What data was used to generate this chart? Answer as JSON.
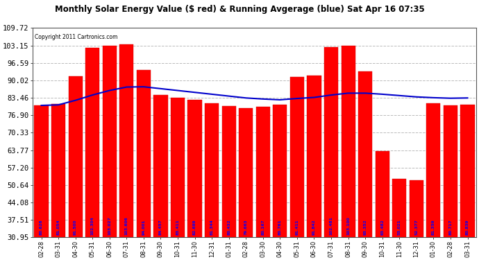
{
  "title": "Monthly Solar Energy Value ($ red) & Running Avgerage (blue) Sat Apr 16 07:35",
  "copyright": "Copyright 2011 Cartronics.com",
  "bar_color": "#ff0000",
  "line_color": "#0000cc",
  "background_color": "#ffffff",
  "grid_color": "#bbbbbb",
  "ylim_min": 30.95,
  "ylim_max": 109.72,
  "yticks": [
    30.95,
    37.51,
    44.08,
    50.64,
    57.2,
    63.77,
    70.33,
    76.9,
    83.46,
    90.02,
    96.59,
    103.15,
    109.72
  ],
  "categories": [
    "02-28",
    "03-31",
    "04-30",
    "05-31",
    "06-30",
    "07-31",
    "08-31",
    "09-30",
    "10-31",
    "11-30",
    "12-31",
    "01-31",
    "02-28",
    "03-30",
    "04-30",
    "05-31",
    "06-30",
    "07-31",
    "08-31",
    "09-30",
    "10-31",
    "11-30",
    "12-31",
    "01-30",
    "02-28",
    "03-31"
  ],
  "values": [
    80.626,
    81.054,
    91.5,
    102.304,
    103.027,
    103.606,
    94.001,
    84.457,
    83.411,
    82.699,
    81.344,
    80.432,
    79.663,
    80.167,
    80.761,
    91.411,
    91.842,
    102.481,
    103.1,
    93.352,
    63.482,
    53.021,
    52.377,
    81.359,
    80.717,
    80.839
  ],
  "running_avg": [
    80.6,
    80.8,
    82.5,
    84.5,
    86.2,
    87.5,
    87.6,
    86.9,
    86.2,
    85.5,
    84.8,
    84.1,
    83.4,
    83.0,
    82.7,
    83.2,
    83.6,
    84.5,
    85.2,
    85.2,
    84.8,
    84.3,
    83.8,
    83.5,
    83.3,
    83.4
  ]
}
